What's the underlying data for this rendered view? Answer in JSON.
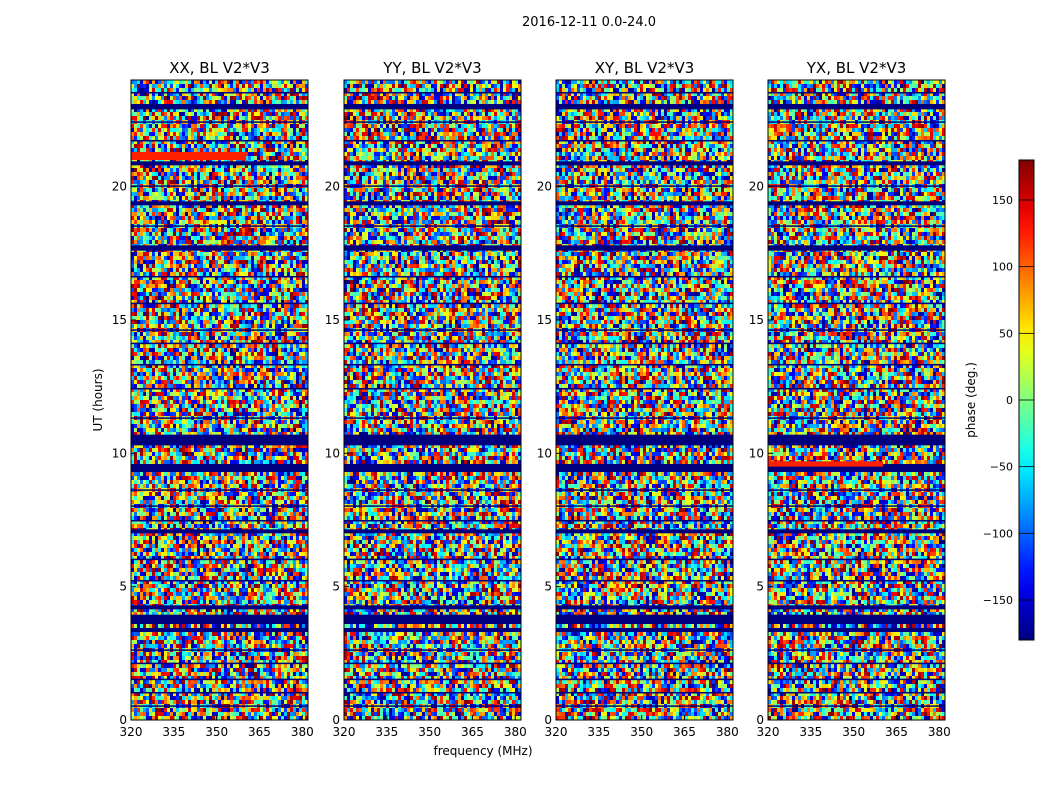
{
  "suptitle": "2016-12-11 0.0-24.0",
  "chart_data": {
    "type": "heatmap",
    "xlabel": "frequency (MHz)",
    "ylabel": "UT (hours)",
    "xlim": [
      320,
      382
    ],
    "ylim": [
      0,
      24
    ],
    "xticks": [
      320,
      335,
      350,
      365,
      380
    ],
    "yticks": [
      0,
      5,
      10,
      15,
      20
    ],
    "panels": [
      {
        "title": "XX, BL V2*V3",
        "seed": 11,
        "redband": [
          21.0,
          21.3
        ]
      },
      {
        "title": "YY, BL V2*V3",
        "seed": 23,
        "redband": null
      },
      {
        "title": "XY, BL V2*V3",
        "seed": 37,
        "redband": null
      },
      {
        "title": "YX, BL V2*V3",
        "seed": 51,
        "redband": [
          9.5,
          9.7
        ]
      }
    ],
    "flagged_bands_hours": [
      [
        0.5,
        0.55
      ],
      [
        1.0,
        1.05
      ],
      [
        1.5,
        1.55
      ],
      [
        2.1,
        2.15
      ],
      [
        2.6,
        2.65
      ],
      [
        3.3,
        3.45
      ],
      [
        3.6,
        3.95
      ],
      [
        4.15,
        4.3
      ],
      [
        5.2,
        5.25
      ],
      [
        6.0,
        6.05
      ],
      [
        7.0,
        7.15
      ],
      [
        7.45,
        7.5
      ],
      [
        8.0,
        8.05
      ],
      [
        8.6,
        8.65
      ],
      [
        9.3,
        9.6
      ],
      [
        10.3,
        10.7
      ],
      [
        11.3,
        11.35
      ],
      [
        12.4,
        12.45
      ],
      [
        13.3,
        13.35
      ],
      [
        14.1,
        14.15
      ],
      [
        14.6,
        14.65
      ],
      [
        15.6,
        15.65
      ],
      [
        16.6,
        16.65
      ],
      [
        17.6,
        17.8
      ],
      [
        18.5,
        18.55
      ],
      [
        19.3,
        19.45
      ],
      [
        20.0,
        20.05
      ],
      [
        20.8,
        20.95
      ],
      [
        21.7,
        21.75
      ],
      [
        22.4,
        22.45
      ],
      [
        22.9,
        23.1
      ],
      [
        23.5,
        23.55
      ]
    ],
    "colorbar": {
      "label": "phase (deg.)",
      "range": [
        -180,
        180
      ],
      "ticks": [
        -150,
        -100,
        -50,
        0,
        50,
        100,
        150
      ],
      "tick_labels": [
        "−150",
        "−100",
        "−50",
        "0",
        "50",
        "100",
        "150"
      ],
      "colormap": "jet"
    }
  }
}
